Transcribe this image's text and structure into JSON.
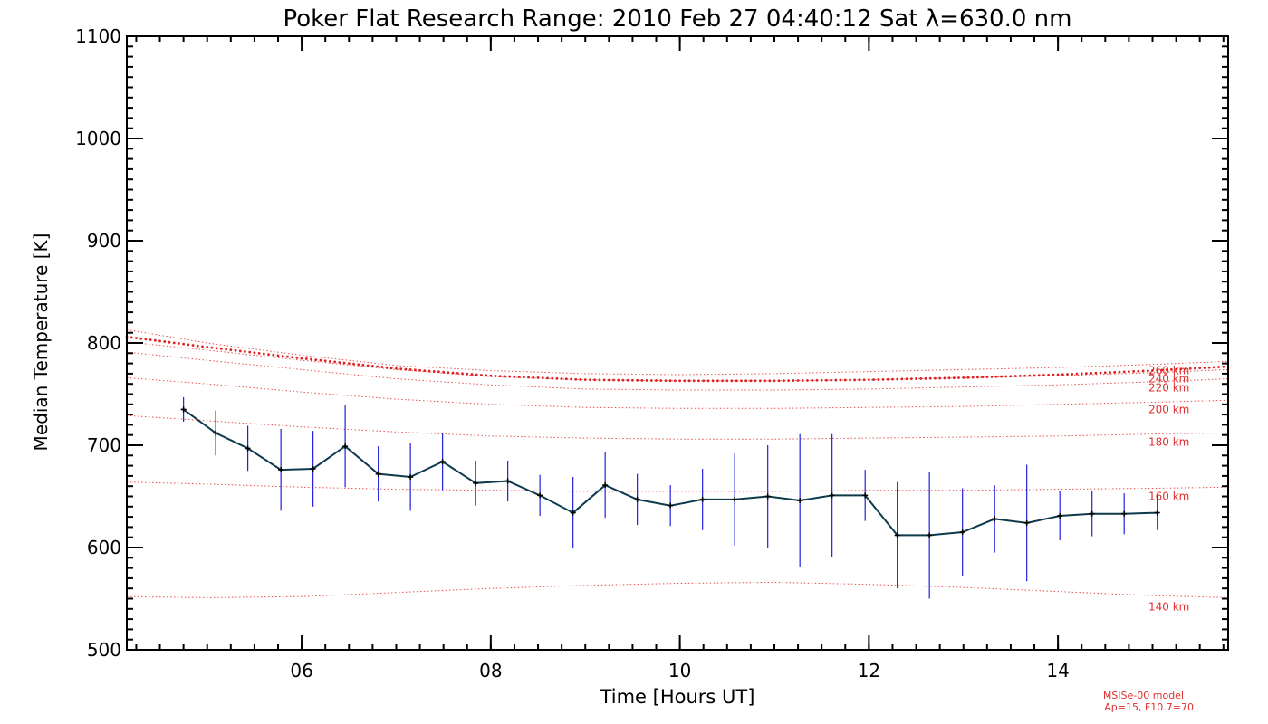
{
  "chart_data": {
    "type": "line",
    "title": "Poker Flat Research Range: 2010 Feb 27 04:40:12 Sat λ=630.0 nm",
    "xlabel": "Time [Hours UT]",
    "ylabel": "Median Temperature [K]",
    "xlim": [
      4.15,
      15.8
    ],
    "ylim": [
      500,
      1100
    ],
    "xticks": [
      {
        "v": 6,
        "label": "06"
      },
      {
        "v": 8,
        "label": "08"
      },
      {
        "v": 10,
        "label": "10"
      },
      {
        "v": 12,
        "label": "12"
      },
      {
        "v": 14,
        "label": "14"
      }
    ],
    "yticks": [
      {
        "v": 500,
        "label": "500"
      },
      {
        "v": 600,
        "label": "600"
      },
      {
        "v": 700,
        "label": "700"
      },
      {
        "v": 800,
        "label": "800"
      },
      {
        "v": 900,
        "label": "900"
      },
      {
        "v": 1000,
        "label": "1000"
      },
      {
        "v": 1100,
        "label": "1100"
      }
    ],
    "series": [
      {
        "name": "",
        "color": "#0d3a4d",
        "error_color": "#2020e0",
        "x": [
          4.75,
          5.09,
          5.43,
          5.78,
          6.12,
          6.46,
          6.81,
          7.15,
          7.49,
          7.84,
          8.18,
          8.52,
          8.87,
          9.21,
          9.55,
          9.9,
          10.24,
          10.58,
          10.93,
          11.27,
          11.61,
          11.96,
          12.3,
          12.64,
          12.99,
          13.33,
          13.67,
          14.02,
          14.36,
          14.7,
          15.05
        ],
        "y": [
          735,
          712,
          697,
          676,
          677,
          699,
          672,
          669,
          684,
          663,
          665,
          651,
          634,
          661,
          647,
          641,
          647,
          647,
          650,
          646,
          651,
          651,
          612,
          612,
          615,
          628,
          624,
          631,
          633,
          633,
          634
        ],
        "err": [
          12,
          22,
          22,
          40,
          37,
          40,
          27,
          33,
          28,
          22,
          20,
          20,
          35,
          32,
          25,
          20,
          30,
          45,
          50,
          65,
          60,
          25,
          52,
          62,
          43,
          33,
          57,
          24,
          22,
          20,
          17
        ]
      }
    ],
    "model_curves": [
      {
        "name": "260 km",
        "label": "260 km",
        "x": [
          4.15,
          5,
          6,
          7,
          8,
          9,
          10,
          11,
          12,
          13,
          14,
          15,
          15.8
        ],
        "y": [
          813,
          800,
          788,
          778,
          773,
          770,
          769,
          770,
          772,
          774,
          776,
          779,
          782
        ]
      },
      {
        "name": "240 km",
        "label": "240 km",
        "x": [
          4.15,
          5,
          6,
          7,
          8,
          9,
          10,
          11,
          12,
          13,
          14,
          15,
          15.8
        ],
        "y": [
          801,
          793,
          783,
          774,
          767,
          764,
          763,
          763,
          764,
          766,
          768,
          771,
          774
        ]
      },
      {
        "name": "220 km",
        "label": "220 km",
        "x": [
          4.15,
          5,
          6,
          7,
          8,
          9,
          10,
          11,
          12,
          13,
          14,
          15,
          15.8
        ],
        "y": [
          791,
          783,
          774,
          765,
          759,
          755,
          754,
          754,
          755,
          757,
          759,
          762,
          765
        ]
      },
      {
        "name": "200 km",
        "label": "200 km",
        "x": [
          4.15,
          5,
          6,
          7,
          8,
          9,
          10,
          11,
          12,
          13,
          14,
          15,
          15.8
        ],
        "y": [
          766,
          760,
          752,
          745,
          740,
          737,
          736,
          736,
          737,
          738,
          740,
          742,
          744
        ]
      },
      {
        "name": "180 km",
        "label": "180 km",
        "x": [
          4.15,
          5,
          6,
          7,
          8,
          9,
          10,
          11,
          12,
          13,
          14,
          15,
          15.8
        ],
        "y": [
          729,
          724,
          718,
          713,
          709,
          707,
          706,
          706,
          707,
          708,
          709,
          711,
          712
        ]
      },
      {
        "name": "160 km",
        "label": "160 km",
        "x": [
          4.15,
          5,
          6,
          7,
          8,
          9,
          10,
          11,
          12,
          13,
          14,
          15,
          15.8
        ],
        "y": [
          664,
          662,
          659,
          657,
          656,
          655,
          655,
          655,
          656,
          656,
          657,
          658,
          659
        ]
      },
      {
        "name": "140 km",
        "label": "140 km",
        "x": [
          4.15,
          5,
          6,
          7,
          8,
          9,
          10,
          11,
          12,
          13,
          14,
          15,
          15.8
        ],
        "y": [
          552,
          551,
          552,
          556,
          560,
          563,
          565,
          566,
          564,
          561,
          557,
          553,
          551
        ]
      }
    ],
    "model_dotted": {
      "x": [
        4.15,
        5,
        6,
        7,
        8,
        9,
        10,
        11,
        12,
        13,
        14,
        15,
        15.8
      ],
      "y": [
        806,
        796,
        785,
        775,
        768,
        764,
        763,
        763,
        764,
        766,
        769,
        773,
        777
      ]
    },
    "model_note": [
      "MSISe-00 model",
      "Ap=15, F10.7=70"
    ]
  }
}
